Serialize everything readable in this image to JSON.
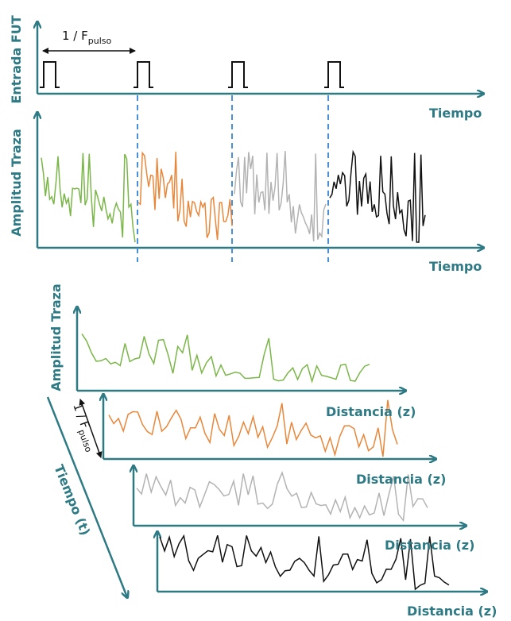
{
  "top_panel": {
    "y_label": "Entrada FUT",
    "period_label": {
      "text": "1 / F",
      "subscript": "pulso"
    },
    "x_label": "Tiempo"
  },
  "middle_panel": {
    "y_label": "Amplitud Traza",
    "x_label": "Tiempo"
  },
  "bottom_panel": {
    "y_label": "Amplitud Traza",
    "period_label": {
      "text": "1 / F",
      "subscript": "pulso"
    },
    "time_label": "Tiempo (t)",
    "traces": [
      {
        "x_label": "Distancia (z)"
      },
      {
        "x_label": "Distancia (z)"
      },
      {
        "x_label": "Distancia (z)"
      },
      {
        "x_label": "Distancia (z)"
      }
    ]
  }
}
